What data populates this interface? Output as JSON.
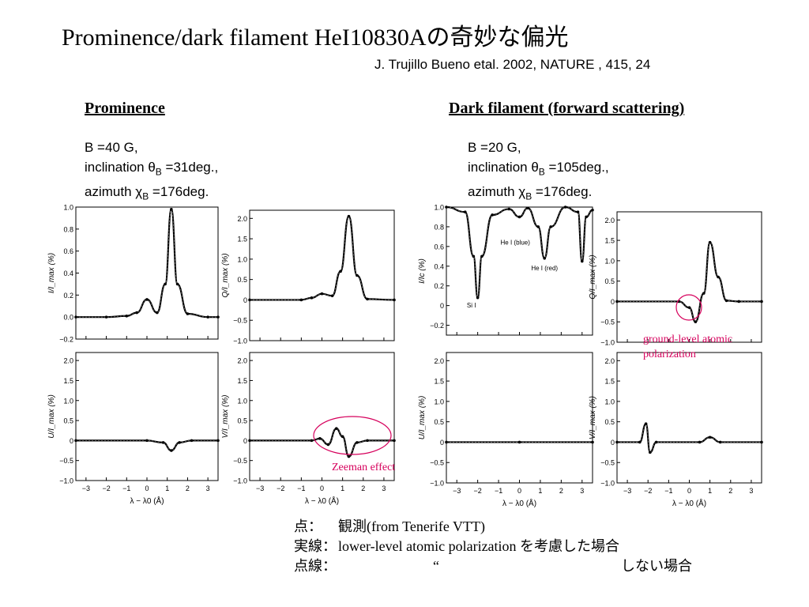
{
  "slide": {
    "title": "Prominence/dark filament HeI10830Aの奇妙な偏光",
    "citation": "J. Trujillo Bueno etal. 2002, NATURE ,  415, 24"
  },
  "prominence": {
    "heading": "Prominence",
    "line1": "B =40 G,",
    "line2_prefix": "inclination ",
    "line2_symbol": "θ",
    "line2_sub": "B",
    "line2_value": " =31deg.,",
    "line3_prefix": "azimuth ",
    "line3_symbol": "χ",
    "line3_sub": "B",
    "line3_value": " =176deg."
  },
  "filament": {
    "heading": "Dark filament (forward scattering)",
    "line1": "B =20 G,",
    "line2_prefix": "inclination ",
    "line2_symbol": "θ",
    "line2_sub": "B",
    "line2_value": " =105deg.,",
    "line3_prefix": "azimuth ",
    "line3_symbol": "χ",
    "line3_sub": "B",
    "line3_value": " =176deg."
  },
  "annotations": {
    "zeeman": "Zeeman effect",
    "ground_line1": "ground-level atomic",
    "ground_line2": "polarization"
  },
  "notes": {
    "row1_key": "点：",
    "row1_label": "観測(from Tenerife VTT)",
    "row2_key": "実線：",
    "row2_label": "lower-level atomic polarization を考慮した場合",
    "row3_key": "点線：",
    "row3_label": "“",
    "row3_tail": "しない場合"
  },
  "colors": {
    "annotation": "#d6005c",
    "ink": "#000000"
  },
  "chart_data": [
    {
      "type": "line",
      "panel": "prominence-I",
      "ylabel": "I/I_max (%)",
      "xlabel": "λ − λ0 (Å)",
      "xlim": [
        -3.5,
        3.5
      ],
      "ylim": [
        -0.2,
        1.0
      ],
      "xticks": [
        "−3",
        "−2",
        "−1",
        "0",
        "1",
        "2",
        "3"
      ],
      "yticks": [
        "−0.2",
        "0.0",
        "0.2",
        "0.4",
        "0.6",
        "0.8",
        "1.0"
      ],
      "x": [
        -3.5,
        -2,
        -1,
        -0.5,
        0,
        0.5,
        0.9,
        1.2,
        1.5,
        2,
        3,
        3.5
      ],
      "y": [
        0.0,
        0.0,
        0.01,
        0.04,
        0.16,
        0.04,
        0.3,
        0.98,
        0.3,
        0.03,
        0.0,
        0.0
      ]
    },
    {
      "type": "line",
      "panel": "prominence-Q",
      "ylabel": "Q/I_max (%)",
      "xlabel": "λ − λ0 (Å)",
      "xlim": [
        -3.5,
        3.5
      ],
      "ylim": [
        -1.0,
        2.2
      ],
      "xticks": [
        "−3",
        "−2",
        "−1",
        "0",
        "1",
        "2",
        "3"
      ],
      "yticks": [
        "−1.0",
        "−0.5",
        "0",
        "0.5",
        "1.0",
        "1.5",
        "2.0"
      ],
      "x": [
        -3.5,
        -1,
        -0.5,
        0,
        0.5,
        0.9,
        1.3,
        1.7,
        2.2,
        3.5
      ],
      "y": [
        0.0,
        0.0,
        0.05,
        0.15,
        0.1,
        0.7,
        2.05,
        0.6,
        0.02,
        0.0
      ]
    },
    {
      "type": "line",
      "panel": "prominence-U",
      "ylabel": "U/I_max (%)",
      "xlabel": "λ − λ0 (Å)",
      "xlim": [
        -3.5,
        3.5
      ],
      "ylim": [
        -1.0,
        2.2
      ],
      "xticks": [
        "−3",
        "−2",
        "−1",
        "0",
        "1",
        "2",
        "3"
      ],
      "yticks": [
        "−1.0",
        "−0.5",
        "0",
        "0.5",
        "1.0",
        "1.5",
        "2.0"
      ],
      "x": [
        -3.5,
        0,
        0.8,
        1.2,
        1.6,
        2.2,
        3.5
      ],
      "y": [
        0.0,
        0.0,
        -0.05,
        -0.25,
        -0.05,
        0.0,
        0.0
      ]
    },
    {
      "type": "line",
      "panel": "prominence-V",
      "ylabel": "V/I_max (%)",
      "xlabel": "λ − λ0 (Å)",
      "xlim": [
        -3.5,
        3.5
      ],
      "ylim": [
        -1.0,
        2.2
      ],
      "xticks": [
        "−3",
        "−2",
        "−1",
        "0",
        "1",
        "2",
        "3"
      ],
      "yticks": [
        "−1.0",
        "−0.5",
        "0",
        "0.5",
        "1.0",
        "1.5",
        "2.0"
      ],
      "x": [
        -3.5,
        -0.5,
        -0.1,
        0.3,
        0.7,
        1.0,
        1.3,
        1.7,
        2.2,
        3.5
      ],
      "y": [
        0.0,
        0.0,
        0.05,
        -0.1,
        0.3,
        0.1,
        -0.4,
        -0.05,
        0.0,
        0.0
      ]
    },
    {
      "type": "line",
      "panel": "filament-I",
      "ylabel": "I/Ic (%)",
      "xlabel": "λ − λ0 (Å)",
      "xlim": [
        -3.5,
        3.5
      ],
      "ylim": [
        -0.3,
        1.0
      ],
      "xticks": [
        "−3",
        "−2",
        "−1",
        "0",
        "1",
        "2",
        "3"
      ],
      "yticks": [
        "−0.2",
        "0",
        "0.2",
        "0.4",
        "0.6",
        "0.8",
        "1.0"
      ],
      "x": [
        -3.5,
        -2.6,
        -2.2,
        -2.0,
        -1.8,
        -1.3,
        -0.5,
        0.0,
        0.4,
        0.9,
        1.2,
        1.5,
        2.2,
        2.8,
        3.0,
        3.2,
        3.5
      ],
      "y": [
        1.0,
        0.95,
        0.5,
        0.08,
        0.5,
        0.92,
        0.98,
        0.9,
        0.99,
        0.8,
        0.48,
        0.8,
        1.0,
        0.95,
        0.45,
        0.9,
        0.97
      ],
      "annotations": [
        "He I (blue)",
        "He I (red)",
        "Si I"
      ]
    },
    {
      "type": "line",
      "panel": "filament-Q",
      "ylabel": "Q/I_max (%)",
      "xlabel": "λ − λ0 (Å)",
      "xlim": [
        -3.5,
        3.5
      ],
      "ylim": [
        -1.0,
        2.2
      ],
      "xticks": [
        "−3",
        "−2",
        "−1",
        "0",
        "1",
        "2",
        "3"
      ],
      "yticks": [
        "−1.0",
        "−0.5",
        "0",
        "0.5",
        "1.0",
        "1.5",
        "2.0"
      ],
      "x": [
        -3.5,
        -0.5,
        0.0,
        0.3,
        0.7,
        1.0,
        1.4,
        1.8,
        2.4,
        3.5
      ],
      "y": [
        0.0,
        0.0,
        -0.15,
        -0.5,
        0.2,
        1.45,
        0.6,
        0.02,
        0.0,
        0.0
      ]
    },
    {
      "type": "line",
      "panel": "filament-U",
      "ylabel": "U/I_max (%)",
      "xlabel": "λ − λ0 (Å)",
      "xlim": [
        -3.5,
        3.5
      ],
      "ylim": [
        -1.0,
        2.2
      ],
      "xticks": [
        "−3",
        "−2",
        "−1",
        "0",
        "1",
        "2",
        "3"
      ],
      "yticks": [
        "−1.0",
        "−0.5",
        "0",
        "0.5",
        "1.0",
        "1.5",
        "2.0"
      ],
      "x": [
        -3.5,
        0,
        3.5
      ],
      "y": [
        0.0,
        0.0,
        0.0
      ]
    },
    {
      "type": "line",
      "panel": "filament-V",
      "ylabel": "V/I_max (%)",
      "xlabel": "λ − λ0 (Å)",
      "xlim": [
        -3.5,
        3.5
      ],
      "ylim": [
        -1.0,
        2.2
      ],
      "xticks": [
        "−3",
        "−2",
        "−1",
        "0",
        "1",
        "2",
        "3"
      ],
      "yticks": [
        "−1.0",
        "−0.5",
        "0",
        "0.5",
        "1.0",
        "1.5",
        "2.0"
      ],
      "x": [
        -3.5,
        -2.4,
        -2.1,
        -1.9,
        -1.6,
        0.5,
        1.0,
        1.5,
        3.5
      ],
      "y": [
        0.0,
        0.0,
        0.45,
        -0.25,
        0.0,
        0.0,
        0.12,
        0.0,
        0.0
      ]
    }
  ]
}
